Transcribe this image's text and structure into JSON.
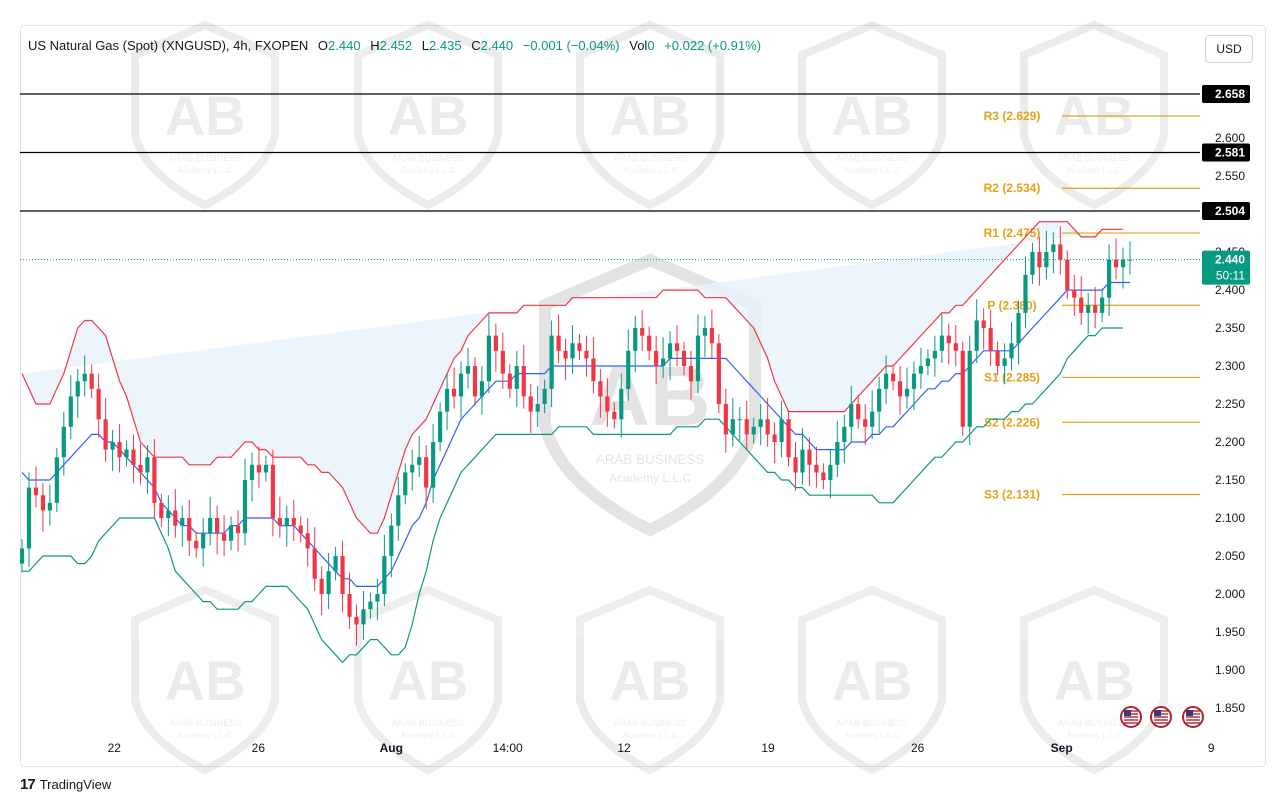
{
  "legend": {
    "symbol": "US Natural Gas (Spot) (XNGUSD), 4h, FXOPEN",
    "o_label": "O",
    "o": "2.440",
    "h_label": "H",
    "h": "2.452",
    "l_label": "L",
    "l": "2.435",
    "c_label": "C",
    "c": "2.440",
    "change": "−0.001 (−0.04%)",
    "vol_label": "Vol",
    "vol": "0",
    "vol_change": "+0.022 (+0.91%)"
  },
  "toolbar": {
    "currency_label": "USD"
  },
  "brand": {
    "logo": "17",
    "name": "TradingView"
  },
  "watermark": {
    "line1": "ARAB BUSINESS",
    "line2": "Academy L.L.C"
  },
  "colors": {
    "up": "#089981",
    "down": "#f23645",
    "band_upper": "#f23645",
    "band_lower": "#089981",
    "basis": "#2962ff",
    "band_fill": "#e8f2fb",
    "pivot": "#e3a21a",
    "hline": "#000000",
    "price_badge": "#089981"
  },
  "chart_data": {
    "type": "candlestick",
    "ylim": [
      1.82,
      2.68
    ],
    "y_ticks": [
      "1.850",
      "1.900",
      "1.950",
      "2.000",
      "2.050",
      "2.100",
      "2.150",
      "2.200",
      "2.250",
      "2.300",
      "2.350",
      "2.400",
      "2.450",
      "2.500",
      "2.550",
      "2.600"
    ],
    "x_ticks": [
      {
        "label": "22",
        "x": 0.04
      },
      {
        "label": "26",
        "x": 0.17
      },
      {
        "label": "Aug",
        "x": 0.29
      },
      {
        "label": "14:00",
        "x": 0.395
      },
      {
        "label": "12",
        "x": 0.5
      },
      {
        "label": "19",
        "x": 0.63
      },
      {
        "label": "26",
        "x": 0.765
      },
      {
        "label": "Sep",
        "x": 0.895
      },
      {
        "label": "9",
        "x": 1.03
      }
    ],
    "current_price": "2.440",
    "countdown": "50:11",
    "horizontal_levels": [
      {
        "label": "2.658",
        "value": 2.658
      },
      {
        "label": "2.581",
        "value": 2.581
      },
      {
        "label": "2.504",
        "value": 2.504
      }
    ],
    "pivots": [
      {
        "label": "R3 (2.629)",
        "value": 2.629
      },
      {
        "label": "R2 (2.534)",
        "value": 2.534
      },
      {
        "label": "R1 (2.475)",
        "value": 2.475
      },
      {
        "label": "P (2.380)",
        "value": 2.38
      },
      {
        "label": "S1 (2.285)",
        "value": 2.285
      },
      {
        "label": "S2 (2.226)",
        "value": 2.226
      },
      {
        "label": "S3 (2.131)",
        "value": 2.131
      }
    ],
    "closes": [
      2.06,
      2.14,
      2.13,
      2.11,
      2.12,
      2.18,
      2.22,
      2.26,
      2.28,
      2.29,
      2.27,
      2.23,
      2.19,
      2.2,
      2.18,
      2.19,
      2.17,
      2.16,
      2.18,
      2.12,
      2.1,
      2.11,
      2.09,
      2.1,
      2.07,
      2.06,
      2.08,
      2.1,
      2.08,
      2.07,
      2.09,
      2.08,
      2.15,
      2.17,
      2.16,
      2.17,
      2.1,
      2.09,
      2.1,
      2.09,
      2.08,
      2.06,
      2.02,
      2.0,
      2.03,
      2.05,
      2.0,
      1.97,
      1.96,
      1.98,
      1.99,
      2.0,
      2.05,
      2.09,
      2.13,
      2.16,
      2.17,
      2.18,
      2.14,
      2.2,
      2.24,
      2.27,
      2.26,
      2.29,
      2.3,
      2.26,
      2.28,
      2.34,
      2.32,
      2.29,
      2.27,
      2.3,
      2.26,
      2.24,
      2.25,
      2.27,
      2.34,
      2.32,
      2.31,
      2.33,
      2.32,
      2.31,
      2.28,
      2.26,
      2.24,
      2.23,
      2.27,
      2.32,
      2.35,
      2.34,
      2.32,
      2.3,
      2.31,
      2.33,
      2.32,
      2.3,
      2.28,
      2.34,
      2.35,
      2.33,
      2.25,
      2.21,
      2.23,
      2.23,
      2.21,
      2.22,
      2.23,
      2.21,
      2.2,
      2.23,
      2.18,
      2.16,
      2.19,
      2.17,
      2.16,
      2.15,
      2.17,
      2.2,
      2.22,
      2.25,
      2.23,
      2.22,
      2.24,
      2.27,
      2.29,
      2.28,
      2.26,
      2.27,
      2.29,
      2.3,
      2.31,
      2.32,
      2.34,
      2.33,
      2.32,
      2.22,
      2.32,
      2.36,
      2.35,
      2.32,
      2.3,
      2.31,
      2.33,
      2.37,
      2.42,
      2.45,
      2.43,
      2.45,
      2.46,
      2.44,
      2.4,
      2.39,
      2.37,
      2.38,
      2.37,
      2.39,
      2.44,
      2.43,
      2.44,
      2.44
    ],
    "basis": [
      2.16,
      2.15,
      2.15,
      2.15,
      2.15,
      2.16,
      2.17,
      2.18,
      2.19,
      2.2,
      2.21,
      2.21,
      2.2,
      2.2,
      2.19,
      2.18,
      2.17,
      2.16,
      2.15,
      2.14,
      2.12,
      2.11,
      2.1,
      2.09,
      2.09,
      2.08,
      2.08,
      2.08,
      2.08,
      2.08,
      2.09,
      2.09,
      2.1,
      2.1,
      2.1,
      2.1,
      2.1,
      2.09,
      2.09,
      2.09,
      2.08,
      2.07,
      2.06,
      2.05,
      2.04,
      2.03,
      2.02,
      2.02,
      2.01,
      2.01,
      2.01,
      2.01,
      2.02,
      2.03,
      2.05,
      2.07,
      2.09,
      2.1,
      2.12,
      2.15,
      2.17,
      2.19,
      2.21,
      2.23,
      2.24,
      2.25,
      2.26,
      2.27,
      2.28,
      2.28,
      2.28,
      2.29,
      2.29,
      2.29,
      2.29,
      2.29,
      2.3,
      2.3,
      2.3,
      2.3,
      2.3,
      2.3,
      2.3,
      2.3,
      2.3,
      2.3,
      2.3,
      2.3,
      2.3,
      2.3,
      2.3,
      2.3,
      2.3,
      2.31,
      2.31,
      2.31,
      2.31,
      2.31,
      2.31,
      2.31,
      2.31,
      2.31,
      2.3,
      2.29,
      2.28,
      2.27,
      2.26,
      2.25,
      2.24,
      2.23,
      2.22,
      2.21,
      2.21,
      2.2,
      2.19,
      2.19,
      2.19,
      2.19,
      2.19,
      2.2,
      2.2,
      2.2,
      2.21,
      2.21,
      2.22,
      2.22,
      2.23,
      2.24,
      2.25,
      2.26,
      2.27,
      2.27,
      2.28,
      2.28,
      2.29,
      2.29,
      2.3,
      2.31,
      2.32,
      2.32,
      2.32,
      2.32,
      2.32,
      2.33,
      2.34,
      2.35,
      2.36,
      2.37,
      2.38,
      2.39,
      2.4,
      2.4,
      2.4,
      2.4,
      2.4,
      2.4,
      2.41,
      2.41,
      2.41,
      2.41
    ],
    "upper": [
      2.29,
      2.27,
      2.25,
      2.25,
      2.25,
      2.27,
      2.29,
      2.32,
      2.35,
      2.36,
      2.36,
      2.35,
      2.34,
      2.31,
      2.28,
      2.26,
      2.23,
      2.2,
      2.19,
      2.18,
      2.18,
      2.18,
      2.18,
      2.18,
      2.17,
      2.17,
      2.17,
      2.17,
      2.18,
      2.18,
      2.18,
      2.19,
      2.2,
      2.2,
      2.19,
      2.19,
      2.18,
      2.18,
      2.18,
      2.18,
      2.18,
      2.17,
      2.17,
      2.16,
      2.16,
      2.15,
      2.14,
      2.12,
      2.1,
      2.09,
      2.08,
      2.08,
      2.1,
      2.13,
      2.16,
      2.19,
      2.21,
      2.22,
      2.23,
      2.25,
      2.27,
      2.29,
      2.31,
      2.32,
      2.34,
      2.35,
      2.36,
      2.37,
      2.37,
      2.37,
      2.37,
      2.37,
      2.38,
      2.38,
      2.38,
      2.38,
      2.38,
      2.38,
      2.38,
      2.39,
      2.39,
      2.39,
      2.39,
      2.39,
      2.39,
      2.39,
      2.39,
      2.39,
      2.39,
      2.39,
      2.39,
      2.39,
      2.4,
      2.4,
      2.4,
      2.4,
      2.4,
      2.4,
      2.39,
      2.39,
      2.39,
      2.39,
      2.38,
      2.37,
      2.36,
      2.35,
      2.33,
      2.31,
      2.28,
      2.26,
      2.24,
      2.24,
      2.24,
      2.24,
      2.24,
      2.24,
      2.24,
      2.24,
      2.24,
      2.25,
      2.26,
      2.27,
      2.28,
      2.29,
      2.3,
      2.3,
      2.31,
      2.32,
      2.33,
      2.34,
      2.35,
      2.36,
      2.37,
      2.37,
      2.38,
      2.38,
      2.39,
      2.4,
      2.41,
      2.42,
      2.43,
      2.44,
      2.45,
      2.46,
      2.47,
      2.48,
      2.49,
      2.49,
      2.49,
      2.49,
      2.49,
      2.48,
      2.47,
      2.47,
      2.47,
      2.48,
      2.48,
      2.48,
      2.48
    ],
    "lower": [
      2.03,
      2.03,
      2.04,
      2.05,
      2.05,
      2.05,
      2.05,
      2.05,
      2.04,
      2.04,
      2.05,
      2.07,
      2.08,
      2.09,
      2.1,
      2.1,
      2.1,
      2.1,
      2.1,
      2.1,
      2.08,
      2.06,
      2.03,
      2.02,
      2.01,
      2.0,
      1.99,
      1.99,
      1.98,
      1.98,
      1.98,
      1.98,
      1.99,
      1.99,
      2.0,
      2.01,
      2.01,
      2.01,
      2.01,
      2.0,
      1.99,
      1.98,
      1.96,
      1.94,
      1.93,
      1.92,
      1.91,
      1.92,
      1.92,
      1.93,
      1.94,
      1.94,
      1.93,
      1.92,
      1.92,
      1.93,
      1.96,
      2.0,
      2.03,
      2.07,
      2.1,
      2.12,
      2.14,
      2.16,
      2.17,
      2.18,
      2.19,
      2.2,
      2.21,
      2.21,
      2.21,
      2.21,
      2.21,
      2.21,
      2.21,
      2.21,
      2.21,
      2.22,
      2.22,
      2.22,
      2.22,
      2.22,
      2.21,
      2.21,
      2.21,
      2.21,
      2.21,
      2.21,
      2.21,
      2.21,
      2.21,
      2.21,
      2.21,
      2.21,
      2.22,
      2.22,
      2.22,
      2.22,
      2.23,
      2.23,
      2.23,
      2.22,
      2.21,
      2.2,
      2.19,
      2.18,
      2.17,
      2.16,
      2.16,
      2.15,
      2.15,
      2.14,
      2.14,
      2.13,
      2.13,
      2.13,
      2.13,
      2.13,
      2.13,
      2.13,
      2.13,
      2.13,
      2.13,
      2.12,
      2.12,
      2.12,
      2.13,
      2.14,
      2.15,
      2.16,
      2.17,
      2.18,
      2.18,
      2.19,
      2.2,
      2.2,
      2.21,
      2.22,
      2.22,
      2.23,
      2.23,
      2.23,
      2.24,
      2.24,
      2.25,
      2.25,
      2.26,
      2.27,
      2.28,
      2.29,
      2.31,
      2.32,
      2.33,
      2.34,
      2.34,
      2.35,
      2.35,
      2.35,
      2.35
    ]
  }
}
